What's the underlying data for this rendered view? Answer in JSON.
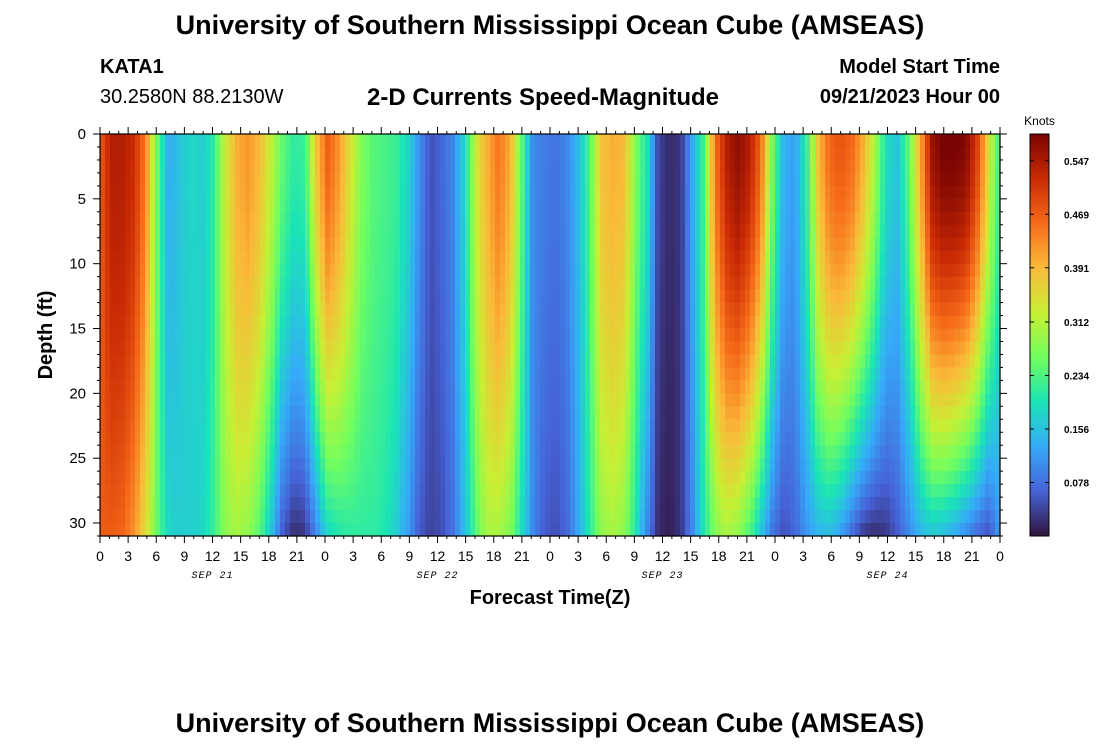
{
  "header": {
    "title": "University of Southern Mississippi Ocean Cube (AMSEAS)",
    "station_id": "KATA1",
    "station_coords": "30.2580N  88.2130W",
    "chart_title": "2-D Currents Speed-Magnitude",
    "model_start_label": "Model Start Time",
    "model_start_value": "09/21/2023 Hour 00"
  },
  "footer": {
    "title": "University of Southern Mississippi Ocean Cube (AMSEAS)"
  },
  "colors": {
    "scale": [
      "#30123b",
      "#4662d7",
      "#36aaf9",
      "#1ae4b6",
      "#72fe5e",
      "#c8ef34",
      "#faba39",
      "#f66b19",
      "#ca2a04",
      "#7a0403"
    ]
  },
  "chart_data": {
    "type": "heatmap",
    "title": "2-D Currents Speed-Magnitude",
    "xlabel": "Forecast Time(Z)",
    "ylabel": "Depth (ft)",
    "x_range_hours": [
      0,
      96
    ],
    "ylim": [
      0,
      31
    ],
    "y_ticks": [
      0,
      5,
      10,
      15,
      20,
      25,
      30
    ],
    "x_tick_labels": [
      "0",
      "3",
      "6",
      "9",
      "12",
      "15",
      "18",
      "21",
      "0",
      "3",
      "6",
      "9",
      "12",
      "15",
      "18",
      "21",
      "0",
      "3",
      "6",
      "9",
      "12",
      "15",
      "18",
      "21",
      "0",
      "3",
      "6",
      "9",
      "12",
      "15",
      "18",
      "21",
      "0"
    ],
    "date_labels": [
      {
        "text": "SEP 21",
        "hour": 12
      },
      {
        "text": "SEP 22",
        "hour": 36
      },
      {
        "text": "SEP 23",
        "hour": 60
      },
      {
        "text": "SEP 24",
        "hour": 84
      }
    ],
    "colorbar": {
      "title": "Knots",
      "min": 0.0,
      "max": 0.586,
      "tick_values": [
        0.547,
        0.469,
        0.391,
        0.312,
        0.234,
        0.156,
        0.078
      ]
    },
    "surface_speed_by_hour": [
      0.47,
      0.54,
      0.54,
      0.52,
      0.44,
      0.26,
      0.13,
      0.16,
      0.18,
      0.17,
      0.21,
      0.33,
      0.4,
      0.42,
      0.39,
      0.32,
      0.25,
      0.21,
      0.22,
      0.38,
      0.47,
      0.42,
      0.34,
      0.27,
      0.24,
      0.23,
      0.22,
      0.18,
      0.11,
      0.05,
      0.07,
      0.1,
      0.18,
      0.33,
      0.4,
      0.45,
      0.4,
      0.25,
      0.1,
      0.09,
      0.08,
      0.1,
      0.15,
      0.24,
      0.38,
      0.4,
      0.39,
      0.27,
      0.2,
      0.04,
      0.02,
      0.03,
      0.13,
      0.23,
      0.45,
      0.54,
      0.57,
      0.54,
      0.46,
      0.27,
      0.14,
      0.12,
      0.21,
      0.38,
      0.46,
      0.48,
      0.46,
      0.4,
      0.3,
      0.19,
      0.16,
      0.25,
      0.4,
      0.56,
      0.59,
      0.59,
      0.58,
      0.5,
      0.35,
      0.21
    ],
    "bottom_speed_by_hour": [
      0.47,
      0.47,
      0.46,
      0.42,
      0.35,
      0.25,
      0.18,
      0.17,
      0.17,
      0.18,
      0.22,
      0.28,
      0.3,
      0.28,
      0.24,
      0.16,
      0.06,
      0.02,
      0.03,
      0.1,
      0.18,
      0.2,
      0.21,
      0.21,
      0.21,
      0.2,
      0.17,
      0.12,
      0.06,
      0.04,
      0.05,
      0.08,
      0.15,
      0.24,
      0.3,
      0.3,
      0.27,
      0.19,
      0.1,
      0.06,
      0.05,
      0.07,
      0.13,
      0.21,
      0.28,
      0.3,
      0.28,
      0.2,
      0.1,
      0.02,
      0.01,
      0.03,
      0.1,
      0.2,
      0.27,
      0.3,
      0.28,
      0.23,
      0.16,
      0.08,
      0.05,
      0.07,
      0.11,
      0.14,
      0.15,
      0.12,
      0.07,
      0.03,
      0.02,
      0.03,
      0.06,
      0.1,
      0.14,
      0.16,
      0.15,
      0.13,
      0.1,
      0.07,
      0.05,
      0.12
    ]
  }
}
